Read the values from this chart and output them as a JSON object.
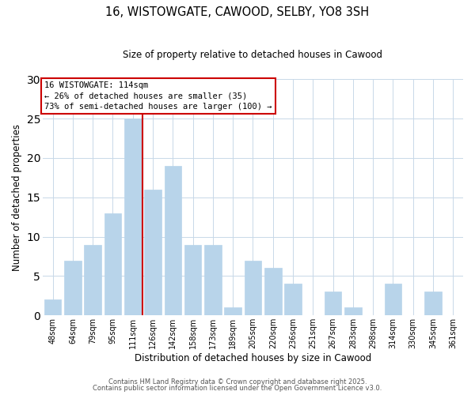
{
  "title": "16, WISTOWGATE, CAWOOD, SELBY, YO8 3SH",
  "subtitle": "Size of property relative to detached houses in Cawood",
  "xlabel": "Distribution of detached houses by size in Cawood",
  "ylabel": "Number of detached properties",
  "bar_labels": [
    "48sqm",
    "64sqm",
    "79sqm",
    "95sqm",
    "111sqm",
    "126sqm",
    "142sqm",
    "158sqm",
    "173sqm",
    "189sqm",
    "205sqm",
    "220sqm",
    "236sqm",
    "251sqm",
    "267sqm",
    "283sqm",
    "298sqm",
    "314sqm",
    "330sqm",
    "345sqm",
    "361sqm"
  ],
  "bar_values": [
    2,
    7,
    9,
    13,
    25,
    16,
    19,
    9,
    9,
    1,
    7,
    6,
    4,
    0,
    3,
    1,
    0,
    4,
    0,
    3,
    0
  ],
  "bar_color": "#b8d4ea",
  "bar_edge_color": "#b8d4ea",
  "vline_color": "#cc0000",
  "ylim": [
    0,
    30
  ],
  "yticks": [
    0,
    5,
    10,
    15,
    20,
    25,
    30
  ],
  "annotation_title": "16 WISTOWGATE: 114sqm",
  "annotation_line1": "← 26% of detached houses are smaller (35)",
  "annotation_line2": "73% of semi-detached houses are larger (100) →",
  "annotation_box_color": "#ffffff",
  "annotation_box_edgecolor": "#cc0000",
  "footer1": "Contains HM Land Registry data © Crown copyright and database right 2025.",
  "footer2": "Contains public sector information licensed under the Open Government Licence v3.0.",
  "background_color": "#ffffff",
  "grid_color": "#c8d8e8"
}
